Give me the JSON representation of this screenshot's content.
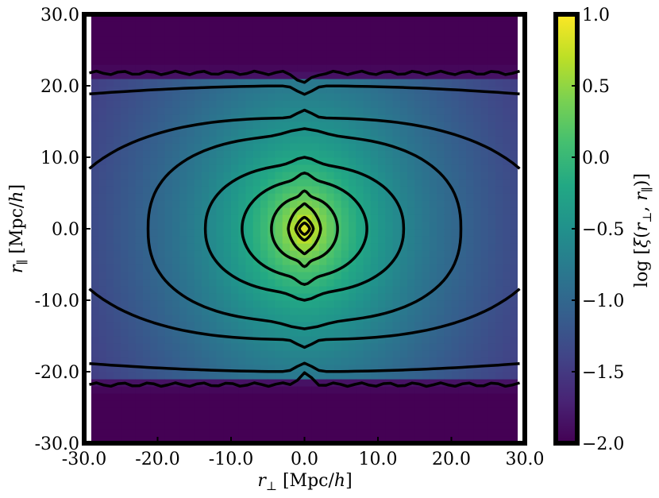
{
  "chart_data": {
    "type": "heatmap",
    "title": "",
    "xlabel_parts": {
      "r": "r",
      "sub": "⊥",
      "units": " [Mpc/",
      "h": "h",
      "close": "]"
    },
    "ylabel_parts": {
      "r": "r",
      "sub": "∥",
      "units": " [Mpc/",
      "h": "h",
      "close": "]"
    },
    "colorbar_label_parts": {
      "pre": "log [",
      "xi": "ξ",
      "open": "(",
      "r1": "r",
      "s1": "⊥",
      "comma": ", ",
      "r2": "r",
      "s2": "∥",
      "close": ")]"
    },
    "xlim": [
      -30,
      30
    ],
    "ylim": [
      -30,
      30
    ],
    "x_tick_values": [
      -30,
      -20,
      -10,
      0,
      10,
      20,
      30
    ],
    "x_tick_labels": [
      "-30.0",
      "-20.0",
      "-10.0",
      "0.0",
      "10.0",
      "20.0",
      "30.0"
    ],
    "y_tick_values": [
      -30,
      -20,
      -10,
      0,
      10,
      20,
      30
    ],
    "y_tick_labels": [
      "-30.0",
      "-20.0",
      "-10.0",
      "0.0",
      "10.0",
      "20.0",
      "30.0"
    ],
    "colorbar_range": [
      -2.0,
      1.0
    ],
    "colorbar_tick_values": [
      1.0,
      0.5,
      0.0,
      -0.5,
      -1.0,
      -1.5,
      -2.0
    ],
    "colorbar_tick_labels": [
      "1.0",
      "0.5",
      "0.0",
      "−0.5",
      "−1.0",
      "−1.5",
      "−2.0"
    ],
    "colormap": "viridis",
    "grid": false,
    "contour_levels": [
      -1.9,
      -1.6,
      -1.2,
      -0.9,
      -0.5,
      -0.15,
      0.2,
      0.6,
      0.9
    ],
    "field_model": "log xi = 1 - 2.4*log10(1 + r/3.5), r = sqrt(rperp^2 + (rpar*0.78)^2), beyond |rpar|>22 value is -2.0"
  }
}
